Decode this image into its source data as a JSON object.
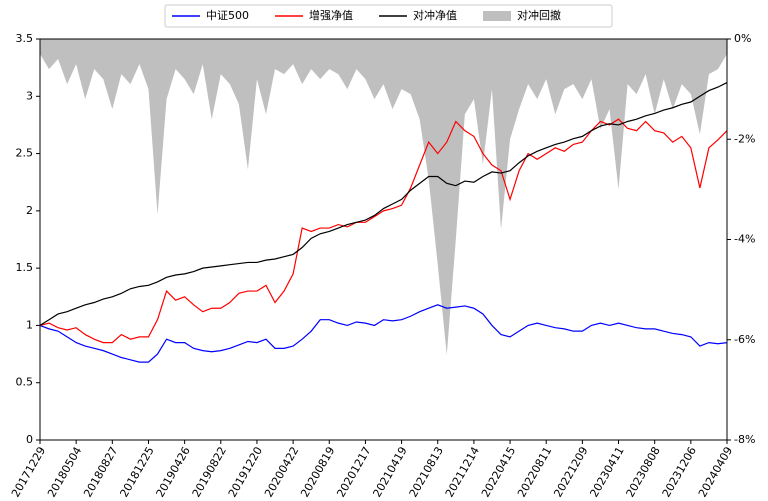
{
  "chart_data": {
    "type": "line",
    "categories": [
      "20171229",
      null,
      null,
      null,
      "20180504",
      null,
      null,
      null,
      "20180827",
      null,
      null,
      null,
      "20181225",
      null,
      null,
      null,
      "20190426",
      null,
      null,
      null,
      "20190822",
      null,
      null,
      null,
      "20191220",
      null,
      null,
      null,
      "20200422",
      null,
      null,
      null,
      "20200819",
      null,
      null,
      null,
      "20201217",
      null,
      null,
      null,
      "20210419",
      null,
      null,
      null,
      "20210813",
      null,
      null,
      null,
      "20211214",
      null,
      null,
      null,
      "20220415",
      null,
      null,
      null,
      "20220811",
      null,
      null,
      null,
      "20221209",
      null,
      null,
      null,
      "20230411",
      null,
      null,
      null,
      "20230808",
      null,
      null,
      null,
      "20231206",
      null,
      null,
      null,
      "20240409"
    ],
    "series": [
      {
        "name": "对冲回撤",
        "type": "area",
        "axis": "y2",
        "color": "#bfbfbf",
        "values": [
          -0.3,
          -0.6,
          -0.4,
          -0.9,
          -0.5,
          -1.2,
          -0.6,
          -0.8,
          -1.4,
          -0.7,
          -0.9,
          -0.5,
          -1.0,
          -3.5,
          -1.2,
          -0.6,
          -0.8,
          -1.1,
          -0.5,
          -1.6,
          -0.7,
          -0.9,
          -1.3,
          -2.6,
          -0.8,
          -1.5,
          -0.6,
          -0.7,
          -0.5,
          -0.9,
          -0.6,
          -0.8,
          -0.6,
          -0.7,
          -1.0,
          -0.6,
          -0.8,
          -1.2,
          -0.9,
          -1.4,
          -1.0,
          -1.1,
          -1.6,
          -2.8,
          -4.5,
          -6.3,
          -4.0,
          -1.5,
          -1.2,
          -2.5,
          -1.0,
          -3.8,
          -2.0,
          -1.4,
          -0.9,
          -1.2,
          -0.8,
          -1.5,
          -1.0,
          -0.9,
          -1.2,
          -0.8,
          -1.8,
          -1.4,
          -3.0,
          -0.9,
          -1.1,
          -0.7,
          -1.5,
          -0.8,
          -1.4,
          -0.9,
          -1.1,
          -1.9,
          -0.7,
          -0.6,
          -0.3
        ]
      },
      {
        "name": "中证500",
        "type": "line",
        "color": "#0000ff",
        "values": [
          1.0,
          0.97,
          0.95,
          0.9,
          0.85,
          0.82,
          0.8,
          0.78,
          0.75,
          0.72,
          0.7,
          0.68,
          0.68,
          0.75,
          0.88,
          0.85,
          0.85,
          0.8,
          0.78,
          0.77,
          0.78,
          0.8,
          0.83,
          0.86,
          0.85,
          0.88,
          0.8,
          0.8,
          0.82,
          0.88,
          0.95,
          1.05,
          1.05,
          1.02,
          1.0,
          1.03,
          1.02,
          1.0,
          1.05,
          1.04,
          1.05,
          1.08,
          1.12,
          1.15,
          1.18,
          1.15,
          1.16,
          1.17,
          1.15,
          1.1,
          1.0,
          0.92,
          0.9,
          0.95,
          1.0,
          1.02,
          1.0,
          0.98,
          0.97,
          0.95,
          0.95,
          1.0,
          1.02,
          1.0,
          1.02,
          1.0,
          0.98,
          0.97,
          0.97,
          0.95,
          0.93,
          0.92,
          0.9,
          0.82,
          0.85,
          0.84,
          0.85
        ]
      },
      {
        "name": "增强净值",
        "type": "line",
        "color": "#ff0000",
        "values": [
          1.0,
          1.02,
          0.98,
          0.96,
          0.98,
          0.92,
          0.88,
          0.85,
          0.85,
          0.92,
          0.88,
          0.9,
          0.9,
          1.05,
          1.3,
          1.22,
          1.25,
          1.18,
          1.12,
          1.15,
          1.15,
          1.2,
          1.28,
          1.3,
          1.3,
          1.35,
          1.2,
          1.3,
          1.45,
          1.85,
          1.82,
          1.85,
          1.85,
          1.88,
          1.86,
          1.9,
          1.9,
          1.95,
          2.0,
          2.02,
          2.05,
          2.2,
          2.4,
          2.6,
          2.5,
          2.6,
          2.78,
          2.7,
          2.65,
          2.5,
          2.4,
          2.35,
          2.1,
          2.35,
          2.5,
          2.45,
          2.5,
          2.55,
          2.52,
          2.58,
          2.6,
          2.7,
          2.78,
          2.75,
          2.8,
          2.72,
          2.7,
          2.78,
          2.7,
          2.68,
          2.6,
          2.65,
          2.55,
          2.2,
          2.55,
          2.62,
          2.7
        ]
      },
      {
        "name": "对冲净值",
        "type": "line",
        "color": "#000000",
        "values": [
          1.0,
          1.05,
          1.1,
          1.12,
          1.15,
          1.18,
          1.2,
          1.23,
          1.25,
          1.28,
          1.32,
          1.34,
          1.35,
          1.38,
          1.42,
          1.44,
          1.45,
          1.47,
          1.5,
          1.51,
          1.52,
          1.53,
          1.54,
          1.55,
          1.55,
          1.57,
          1.58,
          1.6,
          1.62,
          1.68,
          1.76,
          1.8,
          1.82,
          1.85,
          1.88,
          1.9,
          1.92,
          1.96,
          2.02,
          2.06,
          2.1,
          2.18,
          2.24,
          2.3,
          2.3,
          2.24,
          2.22,
          2.26,
          2.25,
          2.3,
          2.34,
          2.33,
          2.35,
          2.42,
          2.48,
          2.52,
          2.55,
          2.58,
          2.6,
          2.63,
          2.65,
          2.7,
          2.74,
          2.76,
          2.75,
          2.78,
          2.8,
          2.83,
          2.85,
          2.88,
          2.9,
          2.93,
          2.95,
          3.0,
          3.05,
          3.08,
          3.12
        ]
      }
    ],
    "legend_order": [
      1,
      2,
      3,
      0
    ],
    "ylim": [
      0,
      3.5
    ],
    "yticks": [
      0,
      0.5,
      1,
      1.5,
      2,
      2.5,
      3,
      3.5
    ],
    "y2lim": [
      -8,
      0
    ],
    "y2ticks": [
      {
        "value": -8,
        "label": "-8%"
      },
      {
        "value": -6,
        "label": "-6%"
      },
      {
        "value": -4,
        "label": "-4%"
      },
      {
        "value": -2,
        "label": "-2%"
      },
      {
        "value": 0,
        "label": "0%"
      }
    ],
    "grid": false
  }
}
